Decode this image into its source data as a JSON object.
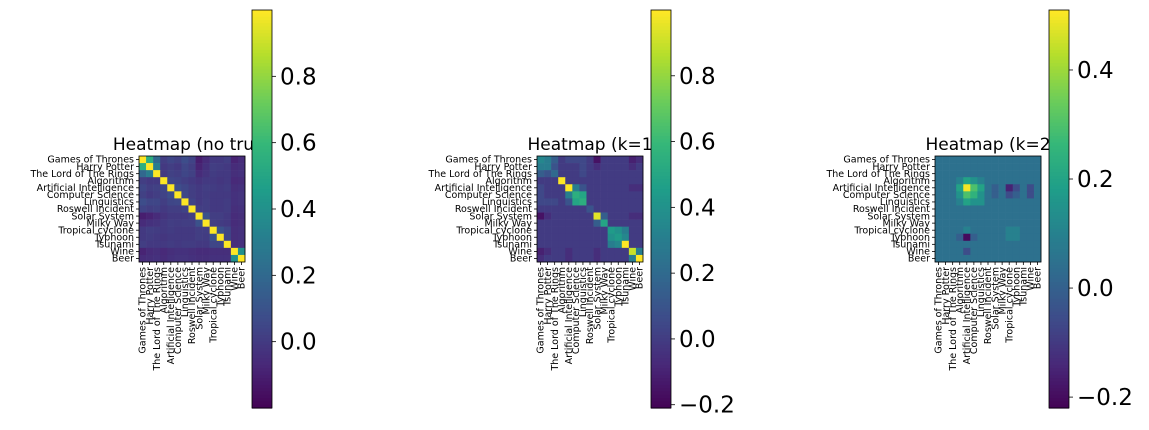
{
  "chart_data": [
    {
      "type": "heatmap",
      "title": "Heatmap (no true)",
      "categories": [
        "Games of Thrones",
        "Harry Potter",
        "The Lord of The Rings",
        "Algorithm",
        "Artificial Intelligence",
        "Computer Science",
        "Linguistics",
        "Roswell Incident",
        "Solar System",
        "Milky Way",
        "Tropical cyclone",
        "Typhoon",
        "Tsunami",
        "Wine",
        "Beer"
      ],
      "colormap": "viridis",
      "vmin": -0.2,
      "vmax": 1.0,
      "colorbar_ticks": [
        0.0,
        0.2,
        0.4,
        0.6,
        0.8
      ],
      "colorbar_tick_labels": [
        "0.0",
        "0.2",
        "0.4",
        "0.6",
        "0.8"
      ],
      "matrix": [
        [
          1.0,
          0.55,
          0.2,
          0.02,
          0.05,
          0.03,
          0.08,
          0.04,
          -0.1,
          -0.05,
          0.0,
          0.0,
          0.02,
          -0.08,
          -0.05
        ],
        [
          0.55,
          1.0,
          0.3,
          0.0,
          0.02,
          0.0,
          0.05,
          0.02,
          -0.08,
          -0.03,
          0.02,
          0.01,
          0.0,
          -0.05,
          -0.04
        ],
        [
          0.2,
          0.3,
          1.0,
          0.0,
          0.03,
          0.02,
          0.05,
          0.03,
          -0.05,
          -0.02,
          0.01,
          0.0,
          0.0,
          -0.04,
          -0.03
        ],
        [
          0.02,
          0.0,
          0.0,
          1.0,
          0.05,
          0.04,
          0.02,
          0.0,
          -0.02,
          0.0,
          0.0,
          -0.01,
          0.0,
          -0.06,
          -0.05
        ],
        [
          0.05,
          0.02,
          0.03,
          0.05,
          1.0,
          0.08,
          0.05,
          0.02,
          0.0,
          0.02,
          0.01,
          0.0,
          0.01,
          -0.04,
          -0.03
        ],
        [
          0.03,
          0.0,
          0.02,
          0.04,
          0.08,
          1.0,
          0.06,
          0.02,
          0.0,
          0.01,
          0.0,
          0.0,
          0.0,
          -0.03,
          -0.02
        ],
        [
          0.08,
          0.05,
          0.05,
          0.02,
          0.05,
          0.06,
          1.0,
          0.04,
          0.0,
          0.02,
          0.0,
          0.0,
          0.01,
          -0.03,
          -0.02
        ],
        [
          0.04,
          0.02,
          0.03,
          0.0,
          0.02,
          0.02,
          0.04,
          1.0,
          0.02,
          0.02,
          0.0,
          0.0,
          0.01,
          -0.04,
          -0.03
        ],
        [
          -0.1,
          -0.08,
          -0.05,
          -0.02,
          0.0,
          0.0,
          0.0,
          0.02,
          1.0,
          0.1,
          0.02,
          0.02,
          0.0,
          -0.05,
          -0.04
        ],
        [
          -0.05,
          -0.03,
          -0.02,
          0.0,
          0.02,
          0.01,
          0.02,
          0.02,
          0.1,
          1.0,
          0.02,
          0.01,
          0.0,
          -0.05,
          -0.04
        ],
        [
          0.0,
          0.02,
          0.01,
          0.0,
          0.01,
          0.0,
          0.0,
          0.0,
          0.02,
          0.02,
          1.0,
          0.1,
          0.05,
          -0.04,
          -0.03
        ],
        [
          0.0,
          0.01,
          0.0,
          -0.01,
          0.0,
          0.0,
          0.0,
          0.0,
          0.02,
          0.01,
          0.1,
          1.0,
          0.05,
          -0.04,
          -0.03
        ],
        [
          0.02,
          0.0,
          0.0,
          0.0,
          0.01,
          0.0,
          0.01,
          0.01,
          0.0,
          0.0,
          0.05,
          0.05,
          1.0,
          -0.04,
          -0.03
        ],
        [
          -0.08,
          -0.05,
          -0.04,
          -0.06,
          -0.04,
          -0.03,
          -0.03,
          -0.04,
          -0.05,
          -0.05,
          -0.04,
          -0.04,
          -0.04,
          1.0,
          0.4
        ],
        [
          -0.05,
          -0.04,
          -0.03,
          -0.05,
          -0.03,
          -0.02,
          -0.02,
          -0.03,
          -0.04,
          -0.04,
          -0.03,
          -0.03,
          -0.03,
          0.4,
          1.0
        ]
      ]
    },
    {
      "type": "heatmap",
      "title": "Heatmap (k=1",
      "categories": [
        "Games of Thrones",
        "Harry Potter",
        "The Lord of The Rings",
        "Algorithm",
        "Artificial Intelligence",
        "Computer Science",
        "Linguistics",
        "Roswell Incident",
        "Solar System",
        "Milky Way",
        "Tropical cyclone",
        "Typhoon",
        "Tsunami",
        "Wine",
        "Beer"
      ],
      "colormap": "viridis",
      "vmin": -0.21,
      "vmax": 1.0,
      "colorbar_ticks": [
        -0.2,
        0.0,
        0.2,
        0.4,
        0.6,
        0.8
      ],
      "colorbar_tick_labels": [
        "−0.2",
        "0.0",
        "0.2",
        "0.4",
        "0.6",
        "0.8"
      ],
      "matrix": [
        [
          0.35,
          0.3,
          0.15,
          0.0,
          0.05,
          0.05,
          0.05,
          0.0,
          -0.15,
          0.0,
          0.0,
          0.0,
          0.0,
          -0.1,
          -0.05
        ],
        [
          0.3,
          0.3,
          0.1,
          0.0,
          0.0,
          0.0,
          0.05,
          0.0,
          -0.05,
          0.0,
          0.0,
          0.0,
          0.0,
          -0.05,
          0.0
        ],
        [
          0.15,
          0.1,
          0.2,
          0.0,
          0.0,
          0.0,
          0.05,
          0.0,
          0.0,
          0.0,
          0.0,
          0.0,
          0.0,
          0.0,
          0.0
        ],
        [
          0.0,
          0.0,
          0.0,
          1.0,
          0.0,
          0.0,
          0.0,
          0.0,
          0.0,
          0.0,
          0.0,
          0.0,
          0.0,
          0.0,
          0.0
        ],
        [
          0.05,
          0.0,
          0.0,
          0.0,
          1.0,
          0.3,
          0.1,
          0.0,
          0.0,
          0.0,
          0.0,
          0.0,
          0.0,
          -0.05,
          -0.05
        ],
        [
          0.05,
          0.0,
          0.0,
          0.0,
          0.3,
          0.55,
          0.5,
          0.0,
          0.0,
          0.0,
          0.0,
          0.0,
          0.0,
          0.0,
          0.0
        ],
        [
          0.05,
          0.05,
          0.05,
          0.0,
          0.1,
          0.5,
          0.55,
          0.0,
          0.0,
          0.0,
          0.0,
          0.0,
          0.0,
          0.0,
          0.0
        ],
        [
          0.0,
          0.0,
          0.0,
          0.0,
          0.0,
          0.0,
          0.0,
          0.1,
          0.0,
          0.0,
          0.0,
          0.0,
          0.0,
          0.0,
          0.0
        ],
        [
          -0.15,
          -0.05,
          0.0,
          0.0,
          0.0,
          0.0,
          0.0,
          0.0,
          0.95,
          0.15,
          0.0,
          0.0,
          0.0,
          -0.05,
          -0.05
        ],
        [
          0.0,
          0.0,
          0.0,
          0.0,
          0.0,
          0.0,
          0.0,
          0.0,
          0.15,
          0.5,
          0.0,
          0.0,
          0.0,
          0.0,
          0.0
        ],
        [
          0.0,
          0.0,
          0.0,
          0.0,
          0.0,
          0.0,
          0.0,
          0.0,
          0.0,
          0.0,
          0.45,
          0.4,
          0.3,
          0.0,
          0.0
        ],
        [
          0.0,
          0.0,
          0.0,
          0.0,
          0.0,
          0.0,
          0.0,
          0.0,
          0.0,
          0.0,
          0.4,
          0.45,
          0.35,
          0.0,
          0.0
        ],
        [
          0.0,
          0.0,
          0.0,
          0.0,
          0.0,
          0.0,
          0.0,
          0.0,
          0.0,
          0.0,
          0.3,
          0.35,
          1.0,
          0.0,
          0.0
        ],
        [
          -0.1,
          -0.05,
          0.0,
          0.0,
          -0.05,
          0.0,
          0.0,
          0.0,
          -0.05,
          0.0,
          0.0,
          0.0,
          0.0,
          0.9,
          0.3
        ],
        [
          -0.05,
          0.0,
          0.0,
          0.0,
          -0.05,
          0.0,
          0.0,
          0.0,
          -0.05,
          0.0,
          0.0,
          0.0,
          0.0,
          0.3,
          1.0
        ]
      ]
    },
    {
      "type": "heatmap",
      "title": "Heatmap (k=2",
      "categories": [
        "Games of Thrones",
        "Harry Potter",
        "The Lord of The Rings",
        "Algorithm",
        "Artificial Intelligence",
        "Computer Science",
        "Linguistics",
        "Roswell Incident",
        "Solar System",
        "Milky Way",
        "Tropical cyclone",
        "Typhoon",
        "Tsunami",
        "Wine",
        "Beer"
      ],
      "colormap": "viridis",
      "vmin": -0.22,
      "vmax": 0.51,
      "colorbar_ticks": [
        -0.2,
        0.0,
        0.2,
        0.4
      ],
      "colorbar_tick_labels": [
        "−0.2",
        "0.0",
        "0.2",
        "0.4"
      ],
      "matrix": [
        [
          0.05,
          0.05,
          0.05,
          0.05,
          0.05,
          0.05,
          0.05,
          0.05,
          0.05,
          0.05,
          0.05,
          0.05,
          0.05,
          0.05,
          0.05
        ],
        [
          0.05,
          0.05,
          0.05,
          0.05,
          0.05,
          0.05,
          0.05,
          0.05,
          0.05,
          0.05,
          0.05,
          0.05,
          0.05,
          0.05,
          0.05
        ],
        [
          0.05,
          0.05,
          0.05,
          0.05,
          0.05,
          0.05,
          0.05,
          0.05,
          0.05,
          0.05,
          0.05,
          0.05,
          0.05,
          0.05,
          0.05
        ],
        [
          0.05,
          0.05,
          0.05,
          0.1,
          0.2,
          0.15,
          0.1,
          0.05,
          0.05,
          0.05,
          0.05,
          0.05,
          0.05,
          0.05,
          0.05
        ],
        [
          0.05,
          0.05,
          0.05,
          0.2,
          0.5,
          0.3,
          0.2,
          0.05,
          0.0,
          0.05,
          -0.15,
          -0.05,
          0.05,
          -0.05,
          0.05
        ],
        [
          0.05,
          0.05,
          0.05,
          0.15,
          0.3,
          0.25,
          0.15,
          0.05,
          0.0,
          0.05,
          -0.05,
          0.0,
          0.05,
          -0.05,
          0.05
        ],
        [
          0.05,
          0.05,
          0.05,
          0.1,
          0.2,
          0.15,
          0.15,
          0.05,
          0.05,
          0.05,
          0.05,
          0.05,
          0.05,
          0.05,
          0.05
        ],
        [
          0.05,
          0.05,
          0.05,
          0.05,
          0.05,
          0.05,
          0.05,
          0.05,
          0.05,
          0.05,
          0.05,
          0.05,
          0.05,
          0.05,
          0.05
        ],
        [
          0.05,
          0.05,
          0.05,
          0.05,
          0.05,
          0.05,
          0.05,
          0.05,
          0.05,
          0.05,
          0.05,
          0.05,
          0.05,
          0.05,
          0.05
        ],
        [
          0.05,
          0.05,
          0.05,
          0.05,
          0.05,
          0.05,
          0.05,
          0.05,
          0.05,
          0.05,
          0.05,
          0.05,
          0.05,
          0.05,
          0.05
        ],
        [
          0.05,
          0.05,
          0.05,
          0.05,
          0.1,
          0.05,
          0.05,
          0.05,
          0.05,
          0.05,
          0.1,
          0.1,
          0.05,
          0.05,
          0.05
        ],
        [
          0.05,
          0.05,
          0.05,
          0.0,
          -0.2,
          0.0,
          0.05,
          0.05,
          0.05,
          0.05,
          0.1,
          0.1,
          0.05,
          0.05,
          0.05
        ],
        [
          0.05,
          0.05,
          0.05,
          0.05,
          0.05,
          0.05,
          0.05,
          0.05,
          0.05,
          0.05,
          0.05,
          0.05,
          0.05,
          0.05,
          0.05
        ],
        [
          0.05,
          0.05,
          0.05,
          0.05,
          -0.05,
          0.05,
          0.05,
          0.05,
          0.05,
          0.05,
          0.05,
          0.05,
          0.05,
          0.05,
          0.05
        ],
        [
          0.05,
          0.05,
          0.05,
          0.05,
          0.05,
          0.05,
          0.05,
          0.05,
          0.05,
          0.05,
          0.05,
          0.05,
          0.05,
          0.05,
          0.05
        ]
      ]
    }
  ]
}
